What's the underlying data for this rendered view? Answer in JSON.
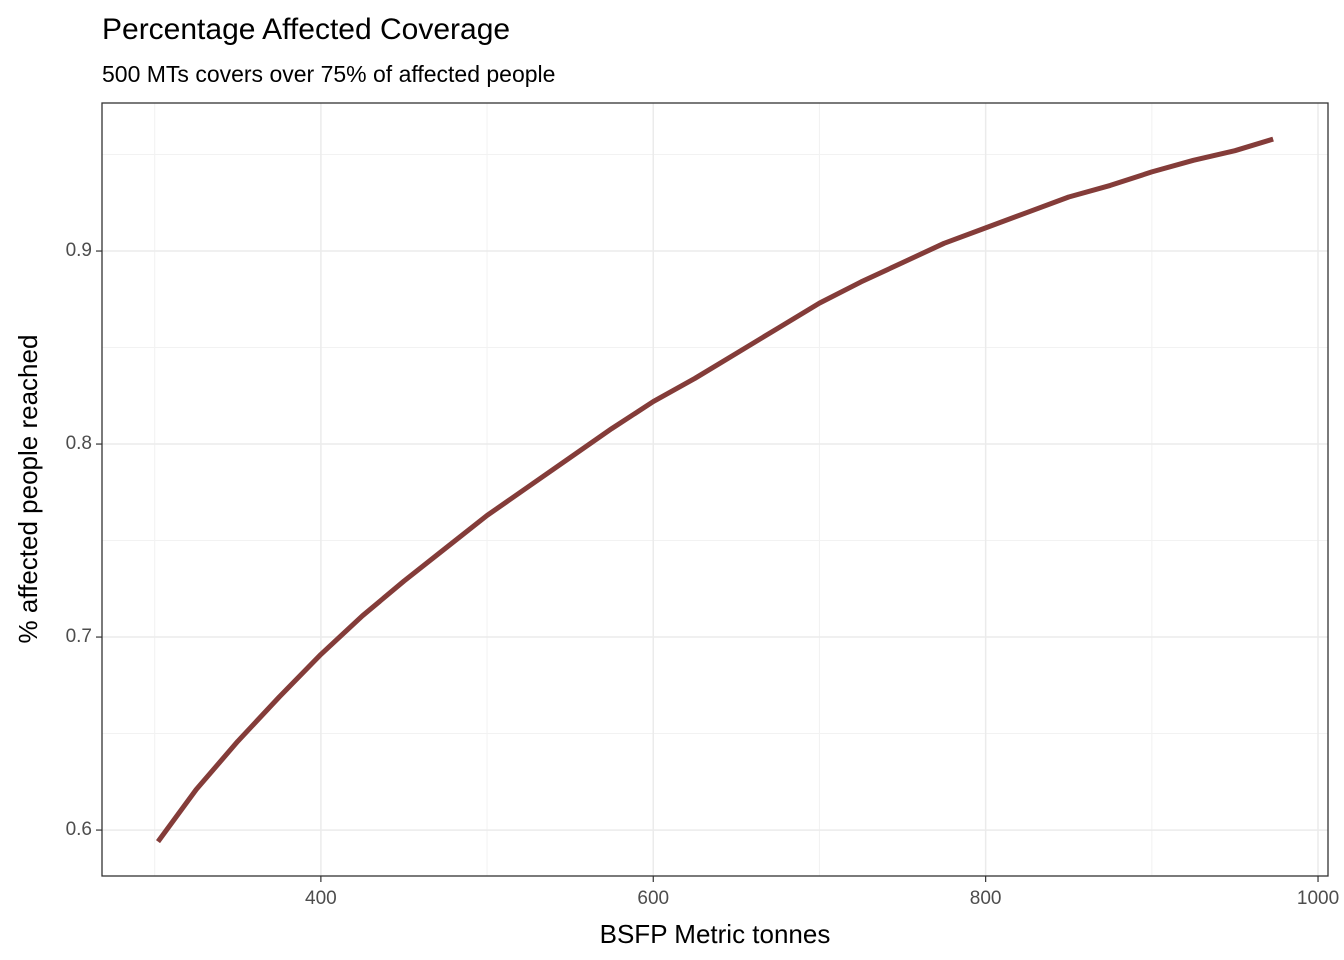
{
  "chart_data": {
    "type": "line",
    "title": "Percentage Affected Coverage",
    "subtitle": "500 MTs covers over 75% of affected people",
    "x_label": "BSFP Metric tonnes",
    "y_label": "% affected people reached",
    "x": [
      302,
      325,
      350,
      375,
      400,
      425,
      450,
      475,
      500,
      525,
      550,
      575,
      600,
      625,
      650,
      675,
      700,
      725,
      750,
      775,
      800,
      825,
      850,
      875,
      900,
      925,
      950,
      973
    ],
    "series": [
      {
        "color": "#843c39",
        "values": [
          0.594,
          0.621,
          0.646,
          0.669,
          0.691,
          0.711,
          0.729,
          0.746,
          0.763,
          0.778,
          0.793,
          0.808,
          0.822,
          0.834,
          0.847,
          0.86,
          0.873,
          0.884,
          0.894,
          0.904,
          0.912,
          0.92,
          0.928,
          0.934,
          0.941,
          0.947,
          0.952,
          0.958
        ]
      }
    ],
    "xlim": [
      268.3,
      1006
    ],
    "ylim": [
      0.5762,
      0.9767
    ],
    "xticks": [
      400,
      600,
      800,
      1000
    ],
    "yticks": [
      0.6,
      0.7,
      0.8,
      0.9
    ],
    "x_minor_ticks": [
      300,
      500,
      700,
      900
    ],
    "y_minor_ticks": [
      0.65,
      0.75,
      0.85,
      0.95
    ],
    "grid": true
  }
}
